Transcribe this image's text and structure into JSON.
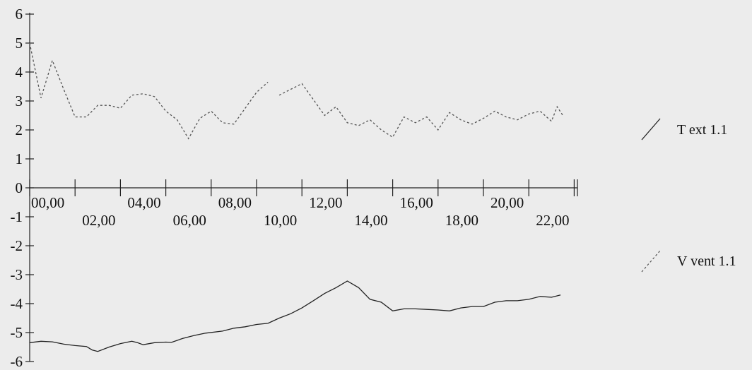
{
  "chart_data": {
    "type": "line",
    "title": "",
    "xlabel": "",
    "ylabel": "",
    "ylim": [
      -6,
      6
    ],
    "yticks": [
      6,
      5,
      4,
      3,
      2,
      1,
      0,
      -1,
      -2,
      -3,
      -4,
      -5,
      -6
    ],
    "xlim": [
      0,
      24
    ],
    "x_hours": [
      0,
      2,
      4,
      6,
      8,
      10,
      12,
      14,
      16,
      18,
      20,
      22
    ],
    "x_tick_labels": [
      "00,00",
      "02,00",
      "04,00",
      "06,00",
      "08,00",
      "10,00",
      "12,00",
      "14,00",
      "16,00",
      "18,00",
      "20,00",
      "22,00"
    ],
    "grid": false,
    "legend_position": "right",
    "series": [
      {
        "name": "T ext 1.1",
        "style": "solid",
        "color": "#222222",
        "points": [
          [
            0.0,
            -5.35
          ],
          [
            0.5,
            -5.3
          ],
          [
            1.0,
            -5.32
          ],
          [
            1.5,
            -5.4
          ],
          [
            2.0,
            -5.45
          ],
          [
            2.5,
            -5.48
          ],
          [
            2.75,
            -5.6
          ],
          [
            3.0,
            -5.65
          ],
          [
            3.5,
            -5.5
          ],
          [
            4.0,
            -5.38
          ],
          [
            4.5,
            -5.3
          ],
          [
            4.75,
            -5.35
          ],
          [
            5.0,
            -5.42
          ],
          [
            5.5,
            -5.35
          ],
          [
            6.0,
            -5.33
          ],
          [
            6.25,
            -5.34
          ],
          [
            6.75,
            -5.2
          ],
          [
            7.25,
            -5.1
          ],
          [
            7.75,
            -5.02
          ],
          [
            8.5,
            -4.95
          ],
          [
            9.0,
            -4.85
          ],
          [
            9.5,
            -4.8
          ],
          [
            10.0,
            -4.72
          ],
          [
            10.5,
            -4.68
          ],
          [
            11.0,
            -4.5
          ],
          [
            11.5,
            -4.35
          ],
          [
            12.0,
            -4.15
          ],
          [
            12.5,
            -3.9
          ],
          [
            13.0,
            -3.65
          ],
          [
            13.5,
            -3.45
          ],
          [
            14.0,
            -3.22
          ],
          [
            14.5,
            -3.45
          ],
          [
            15.0,
            -3.85
          ],
          [
            15.5,
            -3.95
          ],
          [
            16.0,
            -4.25
          ],
          [
            16.5,
            -4.18
          ],
          [
            17.0,
            -4.18
          ],
          [
            17.5,
            -4.2
          ],
          [
            18.0,
            -4.22
          ],
          [
            18.5,
            -4.25
          ],
          [
            19.0,
            -4.15
          ],
          [
            19.5,
            -4.1
          ],
          [
            20.0,
            -4.1
          ],
          [
            20.5,
            -3.95
          ],
          [
            21.0,
            -3.9
          ],
          [
            21.5,
            -3.9
          ],
          [
            22.0,
            -3.85
          ],
          [
            22.5,
            -3.75
          ],
          [
            23.0,
            -3.78
          ],
          [
            23.4,
            -3.7
          ]
        ]
      },
      {
        "name": "V vent 1.1",
        "style": "dashed",
        "color": "#555555",
        "segments": [
          [
            [
              0.0,
              5.0
            ],
            [
              0.5,
              3.1
            ],
            [
              1.0,
              4.4
            ],
            [
              1.5,
              3.4
            ],
            [
              2.0,
              2.45
            ],
            [
              2.5,
              2.45
            ],
            [
              3.0,
              2.85
            ],
            [
              3.5,
              2.85
            ],
            [
              4.0,
              2.75
            ],
            [
              4.5,
              3.2
            ],
            [
              5.0,
              3.25
            ],
            [
              5.5,
              3.15
            ],
            [
              6.0,
              2.65
            ],
            [
              6.5,
              2.35
            ],
            [
              7.0,
              1.7
            ],
            [
              7.5,
              2.4
            ],
            [
              8.0,
              2.65
            ],
            [
              8.5,
              2.25
            ],
            [
              9.0,
              2.2
            ],
            [
              9.5,
              2.75
            ],
            [
              10.0,
              3.3
            ],
            [
              10.5,
              3.65
            ]
          ],
          [
            [
              11.0,
              3.2
            ],
            [
              11.5,
              3.4
            ],
            [
              12.0,
              3.6
            ],
            [
              12.5,
              3.05
            ],
            [
              13.0,
              2.5
            ],
            [
              13.5,
              2.8
            ],
            [
              14.0,
              2.25
            ],
            [
              14.5,
              2.15
            ],
            [
              15.0,
              2.35
            ],
            [
              15.5,
              2.0
            ],
            [
              16.0,
              1.75
            ],
            [
              16.5,
              2.45
            ],
            [
              17.0,
              2.25
            ],
            [
              17.5,
              2.45
            ],
            [
              18.0,
              2.0
            ],
            [
              18.5,
              2.6
            ],
            [
              19.0,
              2.35
            ],
            [
              19.5,
              2.2
            ],
            [
              20.0,
              2.4
            ],
            [
              20.5,
              2.65
            ],
            [
              21.0,
              2.45
            ],
            [
              21.5,
              2.35
            ],
            [
              22.0,
              2.55
            ],
            [
              22.5,
              2.65
            ],
            [
              23.0,
              2.3
            ],
            [
              23.25,
              2.8
            ],
            [
              23.5,
              2.5
            ]
          ]
        ]
      }
    ]
  }
}
